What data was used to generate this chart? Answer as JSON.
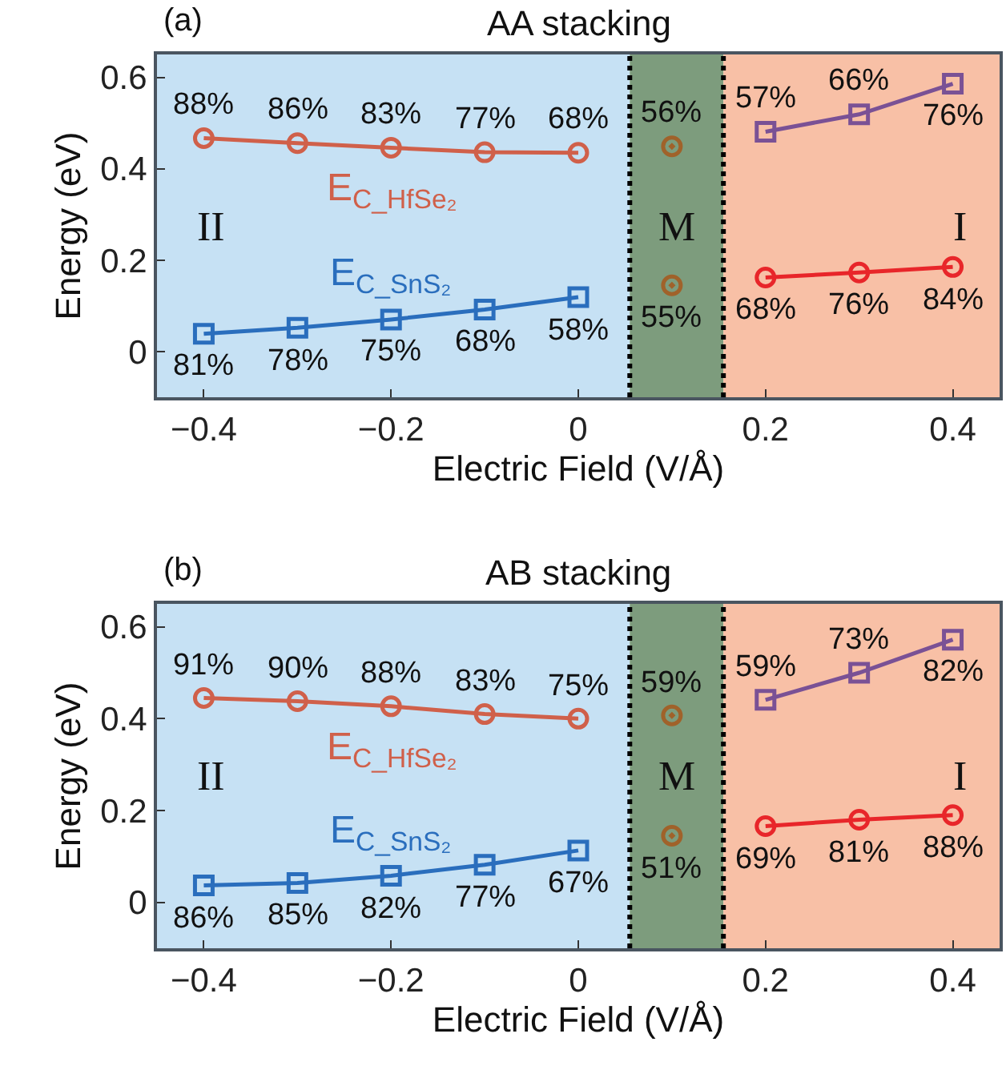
{
  "chart_data": [
    {
      "type": "line",
      "title": "AA stacking",
      "xlabel": "Electric Field (V/Å)",
      "ylabel": "Energy (eV)",
      "xlim": [
        -0.45,
        0.45
      ],
      "xticks": [
        -0.4,
        -0.2,
        0,
        0.2,
        0.4
      ],
      "ylim": [
        -0.1,
        0.65
      ],
      "yticks": [
        0,
        0.2,
        0.4,
        0.6
      ],
      "grid": false,
      "legend": false,
      "line_style": "solid",
      "annotations": [
        "(a)",
        {
          "text": "88%",
          "x": -0.4,
          "y": 0.467
        },
        {
          "text": "86%",
          "x": -0.3,
          "y": 0.456
        },
        {
          "text": "83%",
          "x": -0.2,
          "y": 0.446
        },
        {
          "text": "77%",
          "x": -0.1,
          "y": 0.436
        },
        {
          "text": "68%",
          "x": 0,
          "y": 0.435
        },
        {
          "text": "81%",
          "x": -0.4,
          "y": 0.039
        },
        {
          "text": "78%",
          "x": -0.3,
          "y": 0.052
        },
        {
          "text": "75%",
          "x": -0.2,
          "y": 0.07
        },
        {
          "text": "68%",
          "x": -0.1,
          "y": 0.092
        },
        {
          "text": "58%",
          "x": 0,
          "y": 0.119
        },
        {
          "text": "56%",
          "x": 0.1,
          "y": 0.449
        },
        {
          "text": "55%",
          "x": 0.1,
          "y": 0.145
        },
        {
          "text": "57%",
          "x": 0.2,
          "y": 0.481
        },
        {
          "text": "66%",
          "x": 0.3,
          "y": 0.519
        },
        {
          "text": "76%",
          "x": 0.4,
          "y": 0.586
        },
        {
          "text": "68%",
          "x": 0.2,
          "y": 0.162
        },
        {
          "text": "76%",
          "x": 0.3,
          "y": 0.173
        },
        {
          "text": "84%",
          "x": 0.4,
          "y": 0.185
        }
      ],
      "bands": [
        {
          "axis": "x",
          "from": -0.45,
          "to": 0.055,
          "label": "II",
          "color": "#c6e1f4"
        },
        {
          "axis": "x",
          "from": 0.055,
          "to": 0.155,
          "label": "M",
          "color": "#7d9c7d"
        },
        {
          "axis": "x",
          "from": 0.155,
          "to": 0.45,
          "label": "I",
          "color": "#f8c0a6"
        }
      ],
      "ref_lines": [
        {
          "axis": "x",
          "value": 0.055,
          "color": "#000000",
          "line_style": "dotted"
        },
        {
          "axis": "x",
          "value": 0.155,
          "color": "#000000",
          "line_style": "dotted"
        }
      ],
      "series": [
        {
          "name": "E$_{C_HfSe₂}$",
          "color": "#d0604a",
          "marker": "circle",
          "x": [
            -0.4,
            -0.3,
            -0.2,
            -0.1,
            0
          ],
          "values": [
            0.467,
            0.456,
            0.446,
            0.436,
            0.435
          ]
        },
        {
          "name": "E$_{C_SnS₂}$",
          "color": "#2a6ebd",
          "marker": "square",
          "x": [
            -0.4,
            -0.3,
            -0.2,
            -0.1,
            0
          ],
          "values": [
            0.039,
            0.052,
            0.07,
            0.092,
            0.119
          ]
        },
        {
          "type": "scatter",
          "color": "#a0622a",
          "marker": "circle",
          "x": [
            0.1,
            0.1
          ],
          "values": [
            0.449,
            0.145
          ]
        },
        {
          "color": "#7a5195",
          "marker": "square",
          "x": [
            0.2,
            0.3,
            0.4
          ],
          "values": [
            0.481,
            0.519,
            0.586
          ]
        },
        {
          "color": "#e8262a",
          "marker": "circle",
          "x": [
            0.2,
            0.3,
            0.4
          ],
          "values": [
            0.162,
            0.173,
            0.185
          ]
        }
      ]
    },
    {
      "type": "line",
      "title": "AB stacking",
      "xlabel": "Electric Field (V/Å)",
      "ylabel": "Energy (eV)",
      "xlim": [
        -0.45,
        0.45
      ],
      "xticks": [
        -0.4,
        -0.2,
        0,
        0.2,
        0.4
      ],
      "ylim": [
        -0.1,
        0.65
      ],
      "yticks": [
        0,
        0.2,
        0.4,
        0.6
      ],
      "grid": false,
      "legend": false,
      "line_style": "solid",
      "annotations": [
        "(b)",
        {
          "text": "91%",
          "x": -0.4,
          "y": 0.445
        },
        {
          "text": "90%",
          "x": -0.3,
          "y": 0.438
        },
        {
          "text": "88%",
          "x": -0.2,
          "y": 0.427
        },
        {
          "text": "83%",
          "x": -0.1,
          "y": 0.41
        },
        {
          "text": "75%",
          "x": 0,
          "y": 0.4
        },
        {
          "text": "86%",
          "x": -0.4,
          "y": 0.037
        },
        {
          "text": "85%",
          "x": -0.3,
          "y": 0.042
        },
        {
          "text": "82%",
          "x": -0.2,
          "y": 0.058
        },
        {
          "text": "77%",
          "x": -0.1,
          "y": 0.082
        },
        {
          "text": "67%",
          "x": 0,
          "y": 0.113
        },
        {
          "text": "59%",
          "x": 0.1,
          "y": 0.407
        },
        {
          "text": "51%",
          "x": 0.1,
          "y": 0.145
        },
        {
          "text": "59%",
          "x": 0.2,
          "y": 0.441
        },
        {
          "text": "73%",
          "x": 0.3,
          "y": 0.5
        },
        {
          "text": "82%",
          "x": 0.4,
          "y": 0.572
        },
        {
          "text": "69%",
          "x": 0.2,
          "y": 0.166
        },
        {
          "text": "81%",
          "x": 0.3,
          "y": 0.18
        },
        {
          "text": "88%",
          "x": 0.4,
          "y": 0.19
        }
      ],
      "bands": [
        {
          "axis": "x",
          "from": -0.45,
          "to": 0.055,
          "label": "II",
          "color": "#c6e1f4"
        },
        {
          "axis": "x",
          "from": 0.055,
          "to": 0.155,
          "label": "M",
          "color": "#7d9c7d"
        },
        {
          "axis": "x",
          "from": 0.155,
          "to": 0.45,
          "label": "I",
          "color": "#f8c0a6"
        }
      ],
      "ref_lines": [
        {
          "axis": "x",
          "value": 0.055,
          "color": "#000000",
          "line_style": "dotted"
        },
        {
          "axis": "x",
          "value": 0.155,
          "color": "#000000",
          "line_style": "dotted"
        }
      ],
      "series": [
        {
          "name": "E$_{C_HfSe₂}$",
          "color": "#d0604a",
          "marker": "circle",
          "x": [
            -0.4,
            -0.3,
            -0.2,
            -0.1,
            0
          ],
          "values": [
            0.445,
            0.438,
            0.427,
            0.41,
            0.4
          ]
        },
        {
          "name": "E$_{C_SnS₂}$",
          "color": "#2a6ebd",
          "marker": "square",
          "x": [
            -0.4,
            -0.3,
            -0.2,
            -0.1,
            0
          ],
          "values": [
            0.037,
            0.042,
            0.058,
            0.082,
            0.113
          ]
        },
        {
          "type": "scatter",
          "color": "#a0622a",
          "marker": "circle",
          "x": [
            0.1,
            0.1
          ],
          "values": [
            0.407,
            0.145
          ]
        },
        {
          "color": "#7a5195",
          "marker": "square",
          "x": [
            0.2,
            0.3,
            0.4
          ],
          "values": [
            0.441,
            0.5,
            0.572
          ]
        },
        {
          "color": "#e8262a",
          "marker": "circle",
          "x": [
            0.2,
            0.3,
            0.4
          ],
          "values": [
            0.166,
            0.18,
            0.19
          ]
        }
      ]
    }
  ]
}
